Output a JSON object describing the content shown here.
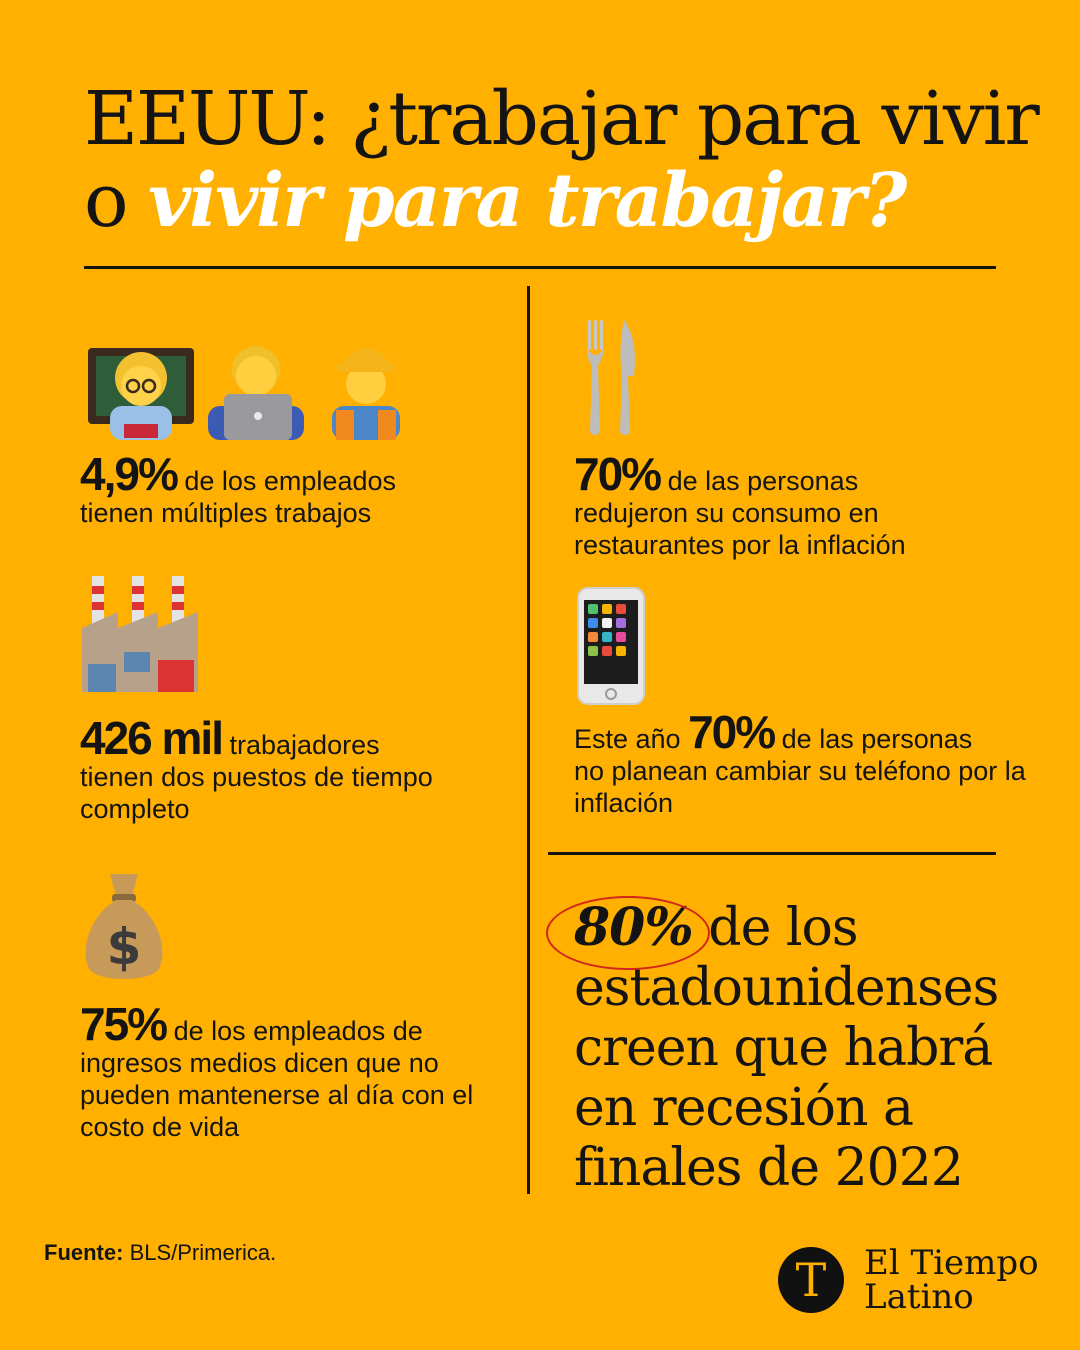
{
  "title": {
    "line1": "EEUU: ¿trabajar para vivir",
    "line2_prefix": "o ",
    "line2_highlight": "vivir para trabajar?"
  },
  "stats": [
    {
      "value": "4,9%",
      "text_line1": " de los empleados",
      "text_rest": "tienen múltiples trabajos",
      "icon": "workers-emoji-icons"
    },
    {
      "value": "426 mil",
      "text_line1": "  trabajadores",
      "text_rest": "tienen dos puestos de tiempo completo",
      "icon": "factory-icon"
    },
    {
      "value": "75%",
      "text_line1": " de los empleados de",
      "text_rest": "ingresos medios dicen que no pueden mantenerse al día con el costo de vida",
      "icon": "money-bag-icon"
    },
    {
      "value": "70%",
      "text_line1": " de las personas",
      "text_rest": "redujeron su consumo en restaurantes por la inflación",
      "icon": "fork-knife-icon"
    },
    {
      "prefix": "Este año ",
      "value": "70%",
      "text_line1": "  de las personas",
      "text_rest": "no planean cambiar su teléfono por la inflación",
      "icon": "smartphone-icon"
    }
  ],
  "headline_stat": {
    "value": "80%",
    "text_line1": " de los",
    "text_rest": "estadounidenses creen que habrá en recesión a finales de 2022"
  },
  "footer": {
    "source_label": "Fuente:",
    "source_value": " BLS/Primerica.",
    "logo_letter": "T",
    "logo_line1": "El Tiempo",
    "logo_line2": "Latino"
  },
  "colors": {
    "background": "#FFB000",
    "text": "#141414",
    "highlight": "#FFFFFF",
    "circle": "#D2251B"
  }
}
